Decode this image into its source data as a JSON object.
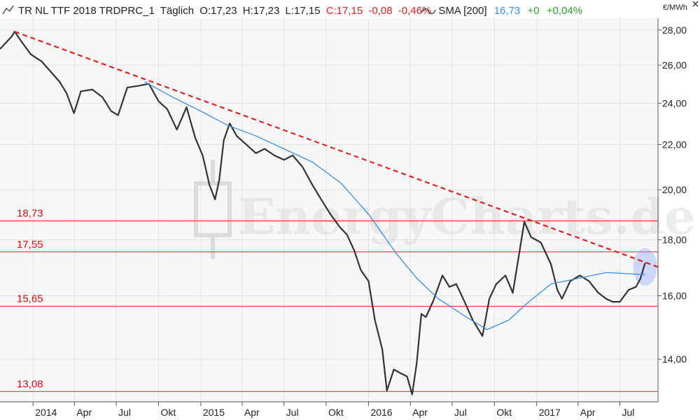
{
  "header": {
    "instrument": "TR NL TTF 2018 TRDPRC_1",
    "period": "Täglich",
    "open": "O:17,23",
    "high": "H:17,23",
    "low": "L:17,15",
    "close": "C:17,15",
    "change": "-0,08",
    "change_pct": "-0,46%",
    "sma_label": "SMA [200]",
    "sma_value": "16,73",
    "sma_change": "+0",
    "sma_change_pct": "+0,04%",
    "close_icon": "close-x-icon",
    "line_icon": "line-series-icon",
    "sma_icon": "sma-series-icon"
  },
  "watermark": "EnergyCharts.de",
  "chart_data": {
    "type": "line",
    "title": "",
    "xlabel": "",
    "ylabel": "",
    "unit": "€/MWh",
    "ylim": [
      12.8,
      28.7
    ],
    "y_scale": "log",
    "yticks": [
      14,
      16,
      18,
      20,
      22,
      24,
      26,
      28
    ],
    "ytick_labels": [
      "14,00",
      "16,00",
      "18,00",
      "20,00",
      "22,00",
      "24,00",
      "26,00",
      "28,00"
    ],
    "xlim": [
      "2013-10-21",
      "2017-09-22"
    ],
    "xticks": [
      "2014-01-01",
      "2014-04-01",
      "2014-07-01",
      "2014-10-01",
      "2015-01-01",
      "2015-04-01",
      "2015-07-01",
      "2015-10-01",
      "2016-01-01",
      "2016-04-01",
      "2016-07-01",
      "2016-10-01",
      "2017-01-01",
      "2017-04-01",
      "2017-07-01"
    ],
    "xtick_labels": [
      "2014",
      "Apr",
      "Jul",
      "Okt",
      "2015",
      "Apr",
      "Jul",
      "Okt",
      "2016",
      "Apr",
      "Jul",
      "Okt",
      "2017",
      "Apr",
      "Jul"
    ],
    "grid": true,
    "legend": "none",
    "series": [
      {
        "color": "#333333",
        "points": [
          [
            "2013-10-21",
            26.9
          ],
          [
            "2013-11-15",
            27.6
          ],
          [
            "2013-11-22",
            27.9
          ],
          [
            "2013-12-10",
            27.2
          ],
          [
            "2013-12-27",
            26.6
          ],
          [
            "2014-01-20",
            26.2
          ],
          [
            "2014-02-10",
            25.6
          ],
          [
            "2014-02-28",
            25.1
          ],
          [
            "2014-03-15",
            24.5
          ],
          [
            "2014-03-31",
            23.5
          ],
          [
            "2014-04-15",
            24.6
          ],
          [
            "2014-05-10",
            24.7
          ],
          [
            "2014-06-01",
            24.3
          ],
          [
            "2014-06-20",
            23.6
          ],
          [
            "2014-07-05",
            23.4
          ],
          [
            "2014-07-25",
            24.8
          ],
          [
            "2014-08-20",
            24.9
          ],
          [
            "2014-09-10",
            25.0
          ],
          [
            "2014-10-01",
            24.1
          ],
          [
            "2014-10-20",
            23.7
          ],
          [
            "2014-11-10",
            22.7
          ],
          [
            "2014-12-01",
            23.8
          ],
          [
            "2014-12-20",
            22.3
          ],
          [
            "2015-01-05",
            21.5
          ],
          [
            "2015-01-20",
            20.2
          ],
          [
            "2015-02-01",
            19.6
          ],
          [
            "2015-02-10",
            20.4
          ],
          [
            "2015-02-20",
            22.2
          ],
          [
            "2015-03-05",
            23.0
          ],
          [
            "2015-03-20",
            22.4
          ],
          [
            "2015-04-10",
            22.0
          ],
          [
            "2015-05-01",
            21.6
          ],
          [
            "2015-05-20",
            21.8
          ],
          [
            "2015-06-10",
            21.5
          ],
          [
            "2015-07-01",
            21.3
          ],
          [
            "2015-07-20",
            21.5
          ],
          [
            "2015-08-10",
            21.0
          ],
          [
            "2015-09-01",
            20.2
          ],
          [
            "2015-09-20",
            19.6
          ],
          [
            "2015-10-10",
            19.0
          ],
          [
            "2015-10-30",
            18.5
          ],
          [
            "2015-11-15",
            18.2
          ],
          [
            "2015-12-01",
            17.6
          ],
          [
            "2015-12-15",
            16.9
          ],
          [
            "2016-01-01",
            16.5
          ],
          [
            "2016-01-15",
            15.2
          ],
          [
            "2016-01-31",
            14.3
          ],
          [
            "2016-02-10",
            13.1
          ],
          [
            "2016-02-25",
            13.7
          ],
          [
            "2016-03-10",
            13.6
          ],
          [
            "2016-03-25",
            13.5
          ],
          [
            "2016-04-05",
            13.0
          ],
          [
            "2016-04-15",
            13.9
          ],
          [
            "2016-04-25",
            15.4
          ],
          [
            "2016-05-05",
            15.3
          ],
          [
            "2016-05-20",
            15.8
          ],
          [
            "2016-06-10",
            16.7
          ],
          [
            "2016-06-25",
            16.3
          ],
          [
            "2016-07-10",
            16.4
          ],
          [
            "2016-07-25",
            15.9
          ],
          [
            "2016-08-15",
            15.2
          ],
          [
            "2016-09-05",
            14.7
          ],
          [
            "2016-09-20",
            15.9
          ],
          [
            "2016-10-05",
            16.4
          ],
          [
            "2016-10-25",
            16.7
          ],
          [
            "2016-11-10",
            16.1
          ],
          [
            "2016-11-25",
            17.6
          ],
          [
            "2016-12-05",
            18.7
          ],
          [
            "2016-12-20",
            18.1
          ],
          [
            "2017-01-10",
            17.9
          ],
          [
            "2017-02-01",
            17.1
          ],
          [
            "2017-02-15",
            16.2
          ],
          [
            "2017-02-25",
            15.9
          ],
          [
            "2017-03-15",
            16.5
          ],
          [
            "2017-04-05",
            16.7
          ],
          [
            "2017-04-25",
            16.5
          ],
          [
            "2017-05-15",
            16.1
          ],
          [
            "2017-06-01",
            15.9
          ],
          [
            "2017-06-15",
            15.8
          ],
          [
            "2017-07-01",
            15.8
          ],
          [
            "2017-07-20",
            16.2
          ],
          [
            "2017-08-05",
            16.3
          ],
          [
            "2017-08-15",
            16.6
          ],
          [
            "2017-08-25",
            17.15
          ]
        ]
      },
      {
        "name": "SMA [200]",
        "color": "#3b8ee0",
        "points": [
          [
            "2014-09-01",
            25.1
          ],
          [
            "2014-11-01",
            24.3
          ],
          [
            "2015-01-01",
            23.6
          ],
          [
            "2015-03-01",
            22.9
          ],
          [
            "2015-05-01",
            22.4
          ],
          [
            "2015-07-01",
            21.8
          ],
          [
            "2015-09-01",
            21.2
          ],
          [
            "2015-11-01",
            20.3
          ],
          [
            "2016-01-01",
            19.0
          ],
          [
            "2016-03-01",
            17.5
          ],
          [
            "2016-04-15",
            16.6
          ],
          [
            "2016-06-01",
            15.9
          ],
          [
            "2016-08-01",
            15.3
          ],
          [
            "2016-09-15",
            14.9
          ],
          [
            "2016-11-01",
            15.2
          ],
          [
            "2016-12-15",
            15.8
          ],
          [
            "2017-02-01",
            16.4
          ],
          [
            "2017-04-01",
            16.6
          ],
          [
            "2017-06-01",
            16.8
          ],
          [
            "2017-08-25",
            16.73
          ]
        ]
      }
    ],
    "trendline": {
      "style": "dashed",
      "color": "#dd2222",
      "start": [
        "2013-11-22",
        27.9
      ],
      "end": [
        "2017-09-22",
        17.0
      ]
    },
    "horizontal_lines": [
      {
        "value": 18.73,
        "label": "18,73"
      },
      {
        "value": 17.55,
        "label": "17,55"
      },
      {
        "value": 15.65,
        "label": "15,65"
      },
      {
        "value": 13.08,
        "label": "13,08"
      }
    ],
    "highlight": {
      "date": "2017-08-25",
      "value": 17.0,
      "color": "#8fa8ff"
    }
  }
}
